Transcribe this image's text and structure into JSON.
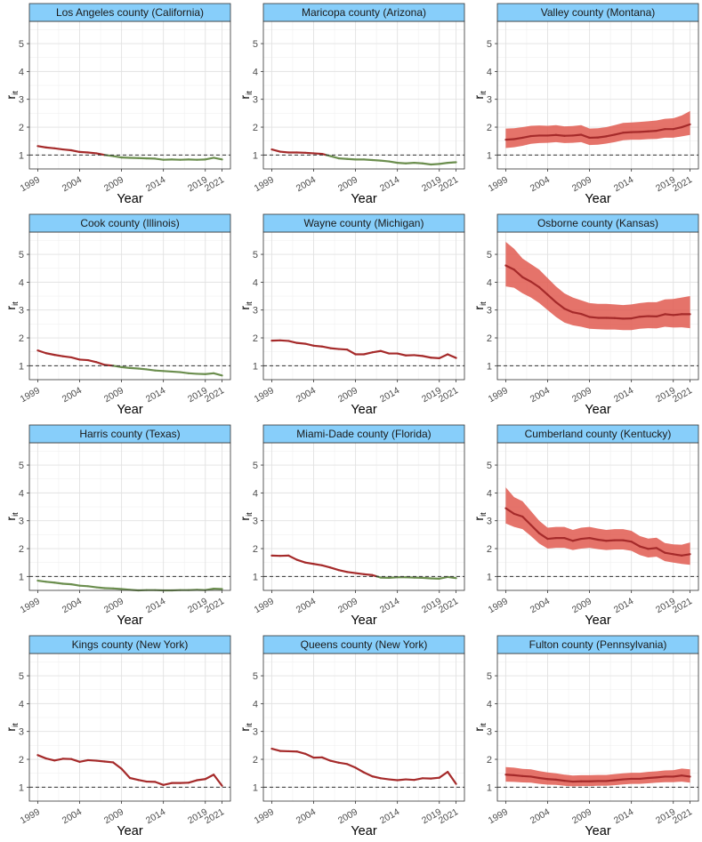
{
  "chart_data": {
    "type": "line",
    "xlabel": "Year",
    "ylabel": "r",
    "ylabel_sub": "it",
    "ylim": [
      0.5,
      5.8
    ],
    "yticks": [
      "1",
      "2",
      "3",
      "4",
      "5"
    ],
    "xticks": [
      "1999",
      "2004",
      "2009",
      "2014",
      "2019",
      "2021"
    ],
    "x": [
      1999,
      2000,
      2001,
      2002,
      2003,
      2004,
      2005,
      2006,
      2007,
      2008,
      2009,
      2010,
      2011,
      2012,
      2013,
      2014,
      2015,
      2016,
      2017,
      2018,
      2019,
      2020,
      2021
    ],
    "reference_line": 1,
    "colors": {
      "strip": "#87cefa",
      "above": "#a52a2a",
      "below": "#6b8e4e",
      "band": "#e05a50",
      "ref": "#333333"
    },
    "panels": [
      {
        "title": "Los Angeles county (California)",
        "values": [
          1.32,
          1.27,
          1.24,
          1.2,
          1.17,
          1.11,
          1.09,
          1.06,
          1.0,
          0.96,
          0.91,
          0.9,
          0.89,
          0.88,
          0.87,
          0.83,
          0.84,
          0.83,
          0.84,
          0.83,
          0.84,
          0.9,
          0.84
        ]
      },
      {
        "title": "Maricopa county (Arizona)",
        "values": [
          1.2,
          1.12,
          1.09,
          1.09,
          1.08,
          1.06,
          1.04,
          0.96,
          0.88,
          0.86,
          0.84,
          0.84,
          0.82,
          0.8,
          0.77,
          0.72,
          0.7,
          0.72,
          0.7,
          0.66,
          0.68,
          0.72,
          0.74
        ]
      },
      {
        "title": "Valley county (Montana)",
        "values": [
          1.55,
          1.57,
          1.62,
          1.68,
          1.7,
          1.7,
          1.72,
          1.69,
          1.7,
          1.73,
          1.62,
          1.63,
          1.67,
          1.73,
          1.8,
          1.82,
          1.83,
          1.85,
          1.87,
          1.93,
          1.93,
          2.0,
          2.1
        ],
        "lower": [
          1.25,
          1.28,
          1.33,
          1.4,
          1.43,
          1.44,
          1.46,
          1.43,
          1.44,
          1.46,
          1.36,
          1.37,
          1.41,
          1.46,
          1.53,
          1.55,
          1.55,
          1.57,
          1.58,
          1.62,
          1.62,
          1.67,
          1.72
        ],
        "upper": [
          1.95,
          1.96,
          2.0,
          2.05,
          2.06,
          2.05,
          2.07,
          2.03,
          2.04,
          2.07,
          1.95,
          1.96,
          2.0,
          2.07,
          2.15,
          2.17,
          2.19,
          2.21,
          2.24,
          2.3,
          2.32,
          2.42,
          2.58
        ]
      },
      {
        "title": "Cook county (Illinois)",
        "values": [
          1.55,
          1.45,
          1.39,
          1.34,
          1.3,
          1.22,
          1.2,
          1.13,
          1.03,
          1.0,
          0.95,
          0.92,
          0.9,
          0.87,
          0.83,
          0.81,
          0.79,
          0.77,
          0.73,
          0.71,
          0.7,
          0.73,
          0.65
        ]
      },
      {
        "title": "Wayne county (Michigan)",
        "values": [
          1.9,
          1.91,
          1.89,
          1.82,
          1.79,
          1.72,
          1.69,
          1.63,
          1.6,
          1.58,
          1.41,
          1.41,
          1.48,
          1.53,
          1.44,
          1.44,
          1.37,
          1.38,
          1.35,
          1.29,
          1.27,
          1.41,
          1.28
        ]
      },
      {
        "title": "Osborne county (Kansas)",
        "values": [
          4.6,
          4.45,
          4.18,
          4.02,
          3.82,
          3.55,
          3.28,
          3.05,
          2.92,
          2.86,
          2.75,
          2.72,
          2.72,
          2.71,
          2.69,
          2.7,
          2.76,
          2.78,
          2.77,
          2.85,
          2.82,
          2.85,
          2.85
        ],
        "lower": [
          3.85,
          3.8,
          3.6,
          3.45,
          3.25,
          3.0,
          2.75,
          2.55,
          2.45,
          2.4,
          2.33,
          2.31,
          2.3,
          2.3,
          2.28,
          2.28,
          2.33,
          2.35,
          2.34,
          2.4,
          2.37,
          2.38,
          2.35
        ],
        "upper": [
          5.45,
          5.2,
          4.85,
          4.65,
          4.45,
          4.15,
          3.85,
          3.6,
          3.45,
          3.35,
          3.25,
          3.22,
          3.22,
          3.2,
          3.18,
          3.2,
          3.25,
          3.28,
          3.28,
          3.38,
          3.4,
          3.45,
          3.5
        ]
      },
      {
        "title": "Harris county (Texas)",
        "values": [
          0.85,
          0.81,
          0.78,
          0.74,
          0.72,
          0.67,
          0.65,
          0.61,
          0.58,
          0.57,
          0.55,
          0.52,
          0.5,
          0.51,
          0.51,
          0.5,
          0.5,
          0.51,
          0.51,
          0.52,
          0.51,
          0.56,
          0.55
        ]
      },
      {
        "title": "Miami-Dade county (Florida)",
        "values": [
          1.75,
          1.74,
          1.75,
          1.6,
          1.5,
          1.45,
          1.4,
          1.32,
          1.23,
          1.16,
          1.12,
          1.08,
          1.05,
          0.96,
          0.95,
          0.97,
          0.97,
          0.96,
          0.95,
          0.93,
          0.92,
          0.98,
          0.94
        ]
      },
      {
        "title": "Cumberland county (Kentucky)",
        "values": [
          3.45,
          3.25,
          3.15,
          2.85,
          2.55,
          2.35,
          2.38,
          2.38,
          2.28,
          2.35,
          2.38,
          2.32,
          2.28,
          2.3,
          2.3,
          2.25,
          2.08,
          1.99,
          2.02,
          1.85,
          1.8,
          1.75,
          1.8
        ],
        "lower": [
          2.9,
          2.78,
          2.7,
          2.45,
          2.18,
          2.0,
          2.03,
          2.03,
          1.95,
          2.0,
          2.03,
          1.98,
          1.95,
          1.97,
          1.97,
          1.92,
          1.77,
          1.68,
          1.71,
          1.55,
          1.5,
          1.45,
          1.42
        ],
        "upper": [
          4.2,
          3.85,
          3.7,
          3.35,
          3.0,
          2.75,
          2.78,
          2.78,
          2.67,
          2.75,
          2.78,
          2.72,
          2.67,
          2.7,
          2.7,
          2.64,
          2.45,
          2.36,
          2.39,
          2.2,
          2.15,
          2.14,
          2.22
        ]
      },
      {
        "title": "Kings county (New York)",
        "values": [
          2.15,
          2.03,
          1.96,
          2.02,
          2.01,
          1.91,
          1.97,
          1.95,
          1.92,
          1.89,
          1.66,
          1.33,
          1.26,
          1.2,
          1.19,
          1.08,
          1.15,
          1.15,
          1.16,
          1.25,
          1.29,
          1.45,
          1.05
        ]
      },
      {
        "title": "Queens county (New York)",
        "values": [
          2.38,
          2.3,
          2.29,
          2.28,
          2.2,
          2.06,
          2.07,
          1.95,
          1.88,
          1.83,
          1.7,
          1.53,
          1.39,
          1.32,
          1.28,
          1.25,
          1.28,
          1.26,
          1.32,
          1.31,
          1.34,
          1.55,
          1.12
        ]
      },
      {
        "title": "Fulton county (Pennsylvania)",
        "values": [
          1.45,
          1.43,
          1.4,
          1.38,
          1.33,
          1.29,
          1.27,
          1.23,
          1.2,
          1.21,
          1.21,
          1.22,
          1.22,
          1.25,
          1.28,
          1.3,
          1.3,
          1.33,
          1.35,
          1.38,
          1.38,
          1.42,
          1.38
        ],
        "lower": [
          1.2,
          1.19,
          1.17,
          1.16,
          1.12,
          1.09,
          1.08,
          1.05,
          1.03,
          1.04,
          1.04,
          1.05,
          1.05,
          1.07,
          1.1,
          1.12,
          1.12,
          1.14,
          1.16,
          1.18,
          1.18,
          1.2,
          1.16
        ],
        "upper": [
          1.72,
          1.7,
          1.66,
          1.64,
          1.58,
          1.53,
          1.5,
          1.45,
          1.42,
          1.43,
          1.43,
          1.44,
          1.44,
          1.47,
          1.5,
          1.52,
          1.52,
          1.55,
          1.57,
          1.6,
          1.61,
          1.67,
          1.64
        ]
      }
    ]
  }
}
